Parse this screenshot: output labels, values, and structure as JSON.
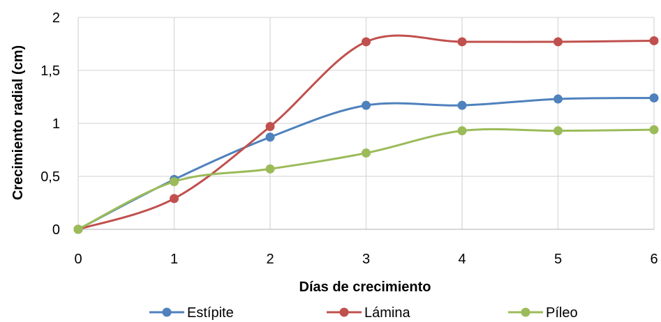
{
  "chart_data": {
    "type": "line",
    "smooth": true,
    "xlabel": "Días de crecimiento",
    "ylabel": "Crecimiento radial (cm)",
    "x": [
      0,
      1,
      2,
      3,
      4,
      5,
      6
    ],
    "xlim": [
      0,
      6
    ],
    "ylim": [
      0,
      2
    ],
    "x_ticks": [
      "0",
      "1",
      "2",
      "3",
      "4",
      "5",
      "6"
    ],
    "y_ticks": [
      "0",
      "0,5",
      "1",
      "1,5",
      "2"
    ],
    "grid": true,
    "legend_position": "bottom",
    "series": [
      {
        "name": "Estípite",
        "color": "#4f81bd",
        "values": [
          0,
          0.47,
          0.87,
          1.17,
          1.17,
          1.23,
          1.24
        ]
      },
      {
        "name": "Lámina",
        "color": "#c0504d",
        "values": [
          0,
          0.29,
          0.97,
          1.77,
          1.77,
          1.77,
          1.78
        ]
      },
      {
        "name": "Píleo",
        "color": "#9bbb59",
        "values": [
          0,
          0.45,
          0.57,
          0.72,
          0.93,
          0.93,
          0.94
        ]
      }
    ]
  }
}
